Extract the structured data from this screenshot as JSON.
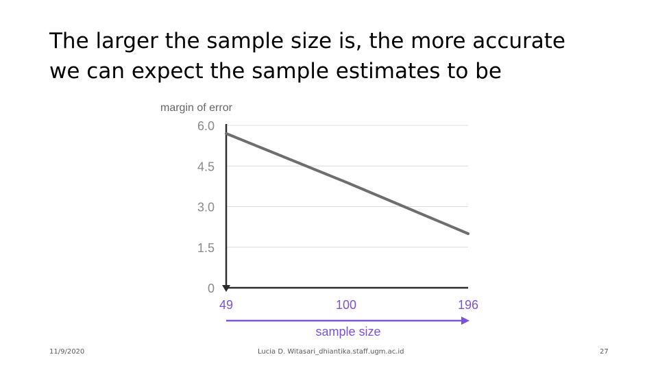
{
  "slide": {
    "title_lines": [
      "The larger the sample size is, the more accurate",
      "we can expect the sample estimates to be"
    ]
  },
  "footer": {
    "date": "11/9/2020",
    "center": "Lucia D. Witasari_dhiantika.staff.ugm.ac.id",
    "page": "27"
  },
  "colors": {
    "series": "#6e6e6e",
    "grid": "#dcdcdc",
    "axis": "#2b2b2b",
    "accent": "#7b52d9",
    "tick_text": "#8a8a8a"
  },
  "chart_data": {
    "type": "line",
    "title": "",
    "ylabel": "margin of error",
    "xlabel": "sample size",
    "y_ticks": [
      {
        "value": 6.0,
        "label": "6.0"
      },
      {
        "value": 4.5,
        "label": "4.5"
      },
      {
        "value": 3.0,
        "label": "3.0"
      },
      {
        "value": 1.5,
        "label": "1.5"
      },
      {
        "value": 0,
        "label": "0"
      }
    ],
    "x_ticks": [
      {
        "value": 49,
        "label": "49"
      },
      {
        "value": 100,
        "label": "100"
      },
      {
        "value": 196,
        "label": "196"
      }
    ],
    "ylim": [
      0,
      6.0
    ],
    "grid": true,
    "series": [
      {
        "points": [
          {
            "x": 49,
            "y": 5.7
          },
          {
            "x": 100,
            "y": 3.9
          },
          {
            "x": 196,
            "y": 2.0
          }
        ]
      }
    ]
  }
}
